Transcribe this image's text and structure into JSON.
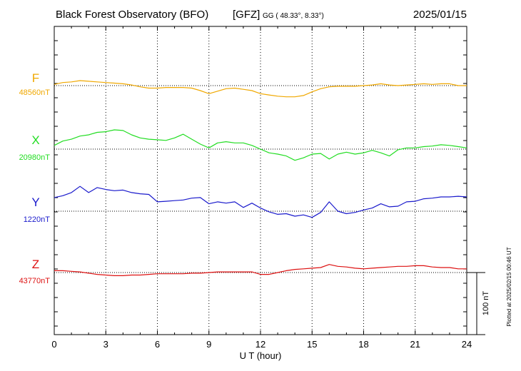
{
  "header": {
    "title": "Black Forest Observatory (BFO)",
    "agency": "[GFZ]",
    "coords": "GG ( 48.33°,   8.33°)",
    "date": "2025/01/15"
  },
  "footer_note": "Plotted at 2025/02/15 00:46 UT",
  "chart_data": {
    "type": "line",
    "xlabel": "U T (hour)",
    "xlim": [
      0,
      24
    ],
    "xticks": [
      "0",
      "3",
      "6",
      "9",
      "12",
      "15",
      "18",
      "21",
      "24"
    ],
    "scale_bar": {
      "label": "100 nT",
      "value_nT": 100
    },
    "grid": true,
    "series": [
      {
        "name": "F",
        "baseline_label": "48560nT",
        "baseline_nT": 48560,
        "color": "#f0a800",
        "x": [
          0,
          0.5,
          1,
          1.5,
          2,
          2.5,
          3,
          3.5,
          4,
          4.5,
          5,
          5.5,
          6,
          6.5,
          7,
          7.5,
          8,
          8.5,
          9,
          9.5,
          10,
          10.5,
          11,
          11.5,
          12,
          12.5,
          13,
          13.5,
          14,
          14.5,
          15,
          15.5,
          16,
          16.5,
          17,
          17.5,
          18,
          18.5,
          19,
          19.5,
          20,
          20.5,
          21,
          21.5,
          22,
          22.5,
          23,
          23.5,
          24
        ],
        "y": [
          48562,
          48565,
          48566,
          48568,
          48567,
          48566,
          48565,
          48564,
          48563,
          48561,
          48558,
          48556,
          48556,
          48557,
          48557,
          48557,
          48556,
          48552,
          48547,
          48551,
          48555,
          48556,
          48554,
          48552,
          48547,
          48545,
          48543,
          48542,
          48542,
          48544,
          48550,
          48555,
          48558,
          48559,
          48559,
          48559,
          48560,
          48561,
          48563,
          48561,
          48560,
          48561,
          48562,
          48563,
          48562,
          48563,
          48563,
          48560,
          48560
        ]
      },
      {
        "name": "X",
        "baseline_label": "20980nT",
        "baseline_nT": 20980,
        "color": "#22dd22",
        "x": [
          0,
          0.5,
          1,
          1.5,
          2,
          2.5,
          3,
          3.5,
          4,
          4.5,
          5,
          5.5,
          6,
          6.5,
          7,
          7.5,
          8,
          8.5,
          9,
          9.5,
          10,
          10.5,
          11,
          11.5,
          12,
          12.5,
          13,
          13.5,
          14,
          14.5,
          15,
          15.5,
          16,
          16.5,
          17,
          17.5,
          18,
          18.5,
          19,
          19.5,
          20,
          20.5,
          21,
          21.5,
          22,
          22.5,
          23,
          23.5,
          24
        ],
        "y": [
          20986,
          20993,
          20996,
          21001,
          21003,
          21007,
          21008,
          21011,
          21010,
          21003,
          20998,
          20996,
          20995,
          20994,
          20998,
          21004,
          20996,
          20988,
          20982,
          20990,
          20992,
          20990,
          20990,
          20986,
          20980,
          20974,
          20972,
          20969,
          20962,
          20966,
          20972,
          20973,
          20964,
          20972,
          20975,
          20972,
          20974,
          20978,
          20974,
          20969,
          20979,
          20982,
          20982,
          20984,
          20985,
          20987,
          20986,
          20984,
          20982
        ]
      },
      {
        "name": "Y",
        "baseline_label": "1220nT",
        "baseline_nT": 1220,
        "color": "#1a1acc",
        "x": [
          0,
          0.5,
          1,
          1.5,
          2,
          2.5,
          3,
          3.5,
          4,
          4.5,
          5,
          5.5,
          6,
          6.5,
          7,
          7.5,
          8,
          8.5,
          9,
          9.5,
          10,
          10.5,
          11,
          11.5,
          12,
          12.5,
          13,
          13.5,
          14,
          14.5,
          15,
          15.5,
          16,
          16.5,
          17,
          17.5,
          18,
          18.5,
          19,
          19.5,
          20,
          20.5,
          21,
          21.5,
          22,
          22.5,
          23,
          23.5,
          24
        ],
        "y": [
          1242,
          1245,
          1250,
          1260,
          1250,
          1258,
          1255,
          1253,
          1254,
          1250,
          1248,
          1247,
          1235,
          1236,
          1237,
          1238,
          1241,
          1242,
          1232,
          1235,
          1233,
          1235,
          1226,
          1233,
          1225,
          1219,
          1215,
          1216,
          1212,
          1214,
          1210,
          1218,
          1235,
          1220,
          1216,
          1218,
          1222,
          1225,
          1232,
          1227,
          1228,
          1235,
          1236,
          1240,
          1241,
          1243,
          1243,
          1244,
          1243
        ]
      },
      {
        "name": "Z",
        "baseline_label": "43770nT",
        "baseline_nT": 43770,
        "color": "#dd1111",
        "x": [
          0,
          0.5,
          1,
          1.5,
          2,
          2.5,
          3,
          3.5,
          4,
          4.5,
          5,
          5.5,
          6,
          6.5,
          7,
          7.5,
          8,
          8.5,
          9,
          9.5,
          10,
          10.5,
          11,
          11.5,
          12,
          12.5,
          13,
          13.5,
          14,
          14.5,
          15,
          15.5,
          16,
          16.5,
          17,
          17.5,
          18,
          18.5,
          19,
          19.5,
          20,
          20.5,
          21,
          21.5,
          22,
          22.5,
          23,
          23.5,
          24
        ],
        "y": [
          43773,
          43773,
          43772,
          43771,
          43769,
          43767,
          43766,
          43765,
          43765,
          43766,
          43766,
          43767,
          43768,
          43768,
          43768,
          43768,
          43769,
          43769,
          43770,
          43771,
          43771,
          43771,
          43771,
          43771,
          43767,
          43767,
          43770,
          43773,
          43775,
          43776,
          43777,
          43778,
          43783,
          43780,
          43779,
          43777,
          43776,
          43777,
          43778,
          43779,
          43780,
          43780,
          43781,
          43781,
          43779,
          43778,
          43778,
          43776,
          43776
        ]
      }
    ]
  }
}
